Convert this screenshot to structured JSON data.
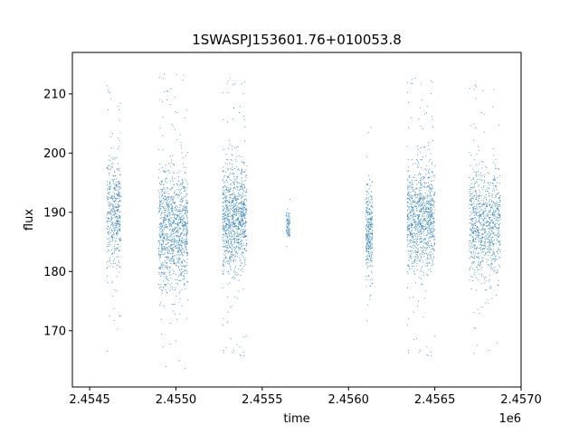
{
  "chart_data": {
    "type": "scatter",
    "title": "1SWASPJ153601.76+010053.8",
    "xlabel": "time",
    "ylabel": "flux",
    "x_offset_label": "1e6",
    "xlim": [
      2.4544,
      2.457
    ],
    "ylim": [
      160.5,
      217.0
    ],
    "x_ticks": [
      2.4545,
      2.455,
      2.4555,
      2.456,
      2.4565,
      2.457
    ],
    "x_tick_labels": [
      "2.4545",
      "2.4550",
      "2.4555",
      "2.4560",
      "2.4565",
      "2.4570"
    ],
    "y_ticks": [
      170,
      180,
      190,
      200,
      210
    ],
    "y_tick_labels": [
      "170",
      "180",
      "190",
      "200",
      "210"
    ],
    "grid": false,
    "legend": "none",
    "marker_color": "#1f77b4",
    "clusters": [
      {
        "x_start": 2.4546,
        "x_end": 2.45468,
        "y_center": 190,
        "y_spread": 8,
        "n": 450
      },
      {
        "x_start": 2.4549,
        "x_end": 2.45507,
        "y_center": 187,
        "y_spread": 9,
        "n": 1100
      },
      {
        "x_start": 2.45527,
        "x_end": 2.45541,
        "y_center": 189,
        "y_spread": 8,
        "n": 1000
      },
      {
        "x_start": 2.45564,
        "x_end": 2.45566,
        "y_center": 188,
        "y_spread": 2,
        "n": 80
      },
      {
        "x_start": 2.4561,
        "x_end": 2.45614,
        "y_center": 187,
        "y_spread": 7,
        "n": 300
      },
      {
        "x_start": 2.45634,
        "x_end": 2.4565,
        "y_center": 189,
        "y_spread": 8,
        "n": 1000
      },
      {
        "x_start": 2.4567,
        "x_end": 2.45688,
        "y_center": 188,
        "y_spread": 8,
        "n": 900
      }
    ]
  }
}
